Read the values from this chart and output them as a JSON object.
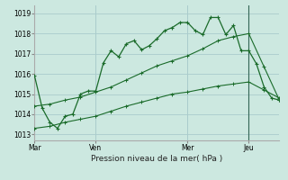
{
  "bg_color": "#cce8e0",
  "grid_color": "#aacccc",
  "line_color": "#1a6b2a",
  "title": "Pression niveau de la mer( hPa )",
  "ylabel_ticks": [
    1013,
    1014,
    1015,
    1016,
    1017,
    1018,
    1019
  ],
  "ylim": [
    1012.7,
    1019.4
  ],
  "day_labels": [
    "Mar",
    "Ven",
    "Mer",
    "Jeu"
  ],
  "day_positions": [
    0,
    8,
    20,
    28
  ],
  "line1_x": [
    0,
    1,
    2,
    3,
    4,
    5,
    6,
    7,
    8,
    9,
    10,
    11,
    12,
    13,
    14,
    15,
    16,
    17,
    18,
    19,
    20,
    21,
    22,
    23,
    24,
    25,
    26,
    27,
    28,
    29,
    30,
    31,
    32
  ],
  "line1_y": [
    1015.9,
    1014.3,
    1013.6,
    1013.3,
    1013.9,
    1014.0,
    1015.0,
    1015.15,
    1015.15,
    1016.55,
    1017.15,
    1016.85,
    1017.5,
    1017.65,
    1017.2,
    1017.4,
    1017.75,
    1018.15,
    1018.3,
    1018.55,
    1018.55,
    1018.15,
    1017.95,
    1018.8,
    1018.8,
    1017.95,
    1018.4,
    1017.15,
    1017.15,
    1016.5,
    1015.35,
    1014.8,
    1014.7
  ],
  "line2_x": [
    0,
    2,
    4,
    6,
    8,
    10,
    12,
    14,
    16,
    18,
    20,
    22,
    24,
    26,
    28,
    30,
    32
  ],
  "line2_y": [
    1013.3,
    1013.4,
    1013.6,
    1013.75,
    1013.9,
    1014.15,
    1014.4,
    1014.6,
    1014.8,
    1015.0,
    1015.1,
    1015.25,
    1015.4,
    1015.5,
    1015.6,
    1015.2,
    1014.8
  ],
  "line3_x": [
    0,
    2,
    4,
    6,
    8,
    10,
    12,
    14,
    16,
    18,
    20,
    22,
    24,
    26,
    28,
    30,
    32
  ],
  "line3_y": [
    1014.4,
    1014.5,
    1014.7,
    1014.85,
    1015.1,
    1015.35,
    1015.7,
    1016.05,
    1016.4,
    1016.65,
    1016.9,
    1017.25,
    1017.65,
    1017.85,
    1018.0,
    1016.35,
    1014.7
  ],
  "xlim": [
    0,
    32
  ],
  "vline_x": 28
}
